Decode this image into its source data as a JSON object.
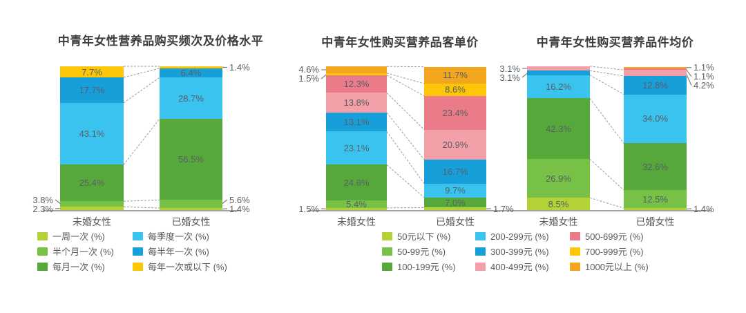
{
  "chart_data": [
    {
      "type": "stacked_bar_percent",
      "title": "中青年女性营养品购买频次及价格水平",
      "categories": [
        "未婚女性",
        "已婚女性"
      ],
      "ylim": [
        0,
        100
      ],
      "grid": false,
      "legend_position": "bottom",
      "series": [
        {
          "name": "一周一次",
          "color": "#b2d235",
          "values": [
            2.3,
            1.4
          ],
          "label_pos": [
            "left",
            "right"
          ]
        },
        {
          "name": "半个月一次",
          "color": "#76c146",
          "values": [
            3.8,
            5.6
          ],
          "label_pos": [
            "left",
            "right"
          ]
        },
        {
          "name": "每月一次",
          "color": "#57a83a",
          "values": [
            25.4,
            56.5
          ],
          "label_pos": [
            "inside",
            "inside"
          ]
        },
        {
          "name": "每季度一次",
          "color": "#3ac3ee",
          "values": [
            43.1,
            28.7
          ],
          "label_pos": [
            "inside",
            "inside"
          ]
        },
        {
          "name": "每半年一次",
          "color": "#169fd9",
          "values": [
            17.7,
            6.4
          ],
          "label_pos": [
            "inside",
            "inside"
          ]
        },
        {
          "name": "每年一次或以下",
          "color": "#fdc609",
          "values": [
            7.7,
            1.4
          ],
          "label_pos": [
            "inside",
            "right"
          ]
        }
      ],
      "legend": [
        "一周一次 (%)",
        "半个月一次 (%)",
        "每月一次 (%)",
        "每季度一次 (%)",
        "每半年一次 (%)",
        "每年一次或以下 (%)"
      ]
    },
    {
      "type": "stacked_bar_percent",
      "title": "中青年女性购买营养品客单价",
      "categories": [
        "未婚女性",
        "已婚女性"
      ],
      "ylim": [
        0,
        100
      ],
      "grid": false,
      "legend_position": "bottom-shared-with-chart-3",
      "series": [
        {
          "name": "50元以下",
          "color": "#b2d235",
          "values": [
            1.5,
            1.7
          ],
          "label_pos": [
            "left",
            "right"
          ]
        },
        {
          "name": "50-99元",
          "color": "#76c146",
          "values": [
            5.4,
            null
          ],
          "label_pos": [
            "inside",
            null
          ]
        },
        {
          "name": "100-199元",
          "color": "#57a83a",
          "values": [
            24.6,
            7.0
          ],
          "label_pos": [
            "inside",
            "inside"
          ]
        },
        {
          "name": "200-299元",
          "color": "#3ac3ee",
          "values": [
            23.1,
            9.7
          ],
          "label_pos": [
            "inside",
            "inside"
          ]
        },
        {
          "name": "300-399元",
          "color": "#169fd9",
          "values": [
            13.1,
            16.7
          ],
          "label_pos": [
            "inside",
            "inside"
          ]
        },
        {
          "name": "400-499元",
          "color": "#f4a0a8",
          "values": [
            13.8,
            20.9
          ],
          "label_pos": [
            "inside",
            "inside"
          ]
        },
        {
          "name": "500-699元",
          "color": "#ec7b89",
          "values": [
            12.3,
            23.4
          ],
          "label_pos": [
            "inside",
            "inside"
          ]
        },
        {
          "name": "700-999元",
          "color": "#fdc609",
          "values": [
            1.5,
            8.6
          ],
          "label_pos": [
            "left",
            "inside"
          ]
        },
        {
          "name": "1000元以上",
          "color": "#f2a61e",
          "values": [
            4.6,
            11.7
          ],
          "label_pos": [
            "left",
            "inside"
          ]
        }
      ],
      "legend": [
        "50元以下 (%)",
        "50-99元 (%)",
        "100-199元 (%)",
        "200-299元 (%)",
        "300-399元 (%)",
        "400-499元 (%)",
        "500-699元 (%)",
        "700-999元 (%)",
        "1000元以上 (%)"
      ]
    },
    {
      "type": "stacked_bar_percent",
      "title": "中青年女性购买营养品件均价",
      "categories": [
        "未婚女性",
        "已婚女性"
      ],
      "ylim": [
        0,
        100
      ],
      "grid": false,
      "legend_position": "shared-with-chart-2",
      "series": [
        {
          "name": "50元以下",
          "color": "#b2d235",
          "values": [
            8.5,
            1.4
          ],
          "label_pos": [
            "inside",
            "right"
          ]
        },
        {
          "name": "50-99元",
          "color": "#76c146",
          "values": [
            26.9,
            12.5
          ],
          "label_pos": [
            "inside",
            "inside"
          ]
        },
        {
          "name": "100-199元",
          "color": "#57a83a",
          "values": [
            42.3,
            32.6
          ],
          "label_pos": [
            "inside",
            "inside"
          ]
        },
        {
          "name": "200-299元",
          "color": "#3ac3ee",
          "values": [
            16.2,
            34.0
          ],
          "label_pos": [
            "inside",
            "inside"
          ]
        },
        {
          "name": "300-399元",
          "color": "#169fd9",
          "values": [
            3.1,
            12.8
          ],
          "label_pos": [
            "left",
            "inside"
          ]
        },
        {
          "name": "400-499元",
          "color": "#f4a0a8",
          "values": [
            3.1,
            4.2
          ],
          "label_pos": [
            "left",
            "right"
          ]
        },
        {
          "name": "500-699元",
          "color": "#ec7b89",
          "values": [
            null,
            1.1
          ],
          "label_pos": [
            null,
            "right"
          ]
        },
        {
          "name": "1000元以上",
          "color": "#f2a61e",
          "values": [
            null,
            1.1
          ],
          "label_pos": [
            null,
            "right"
          ]
        }
      ],
      "legend": null
    }
  ]
}
